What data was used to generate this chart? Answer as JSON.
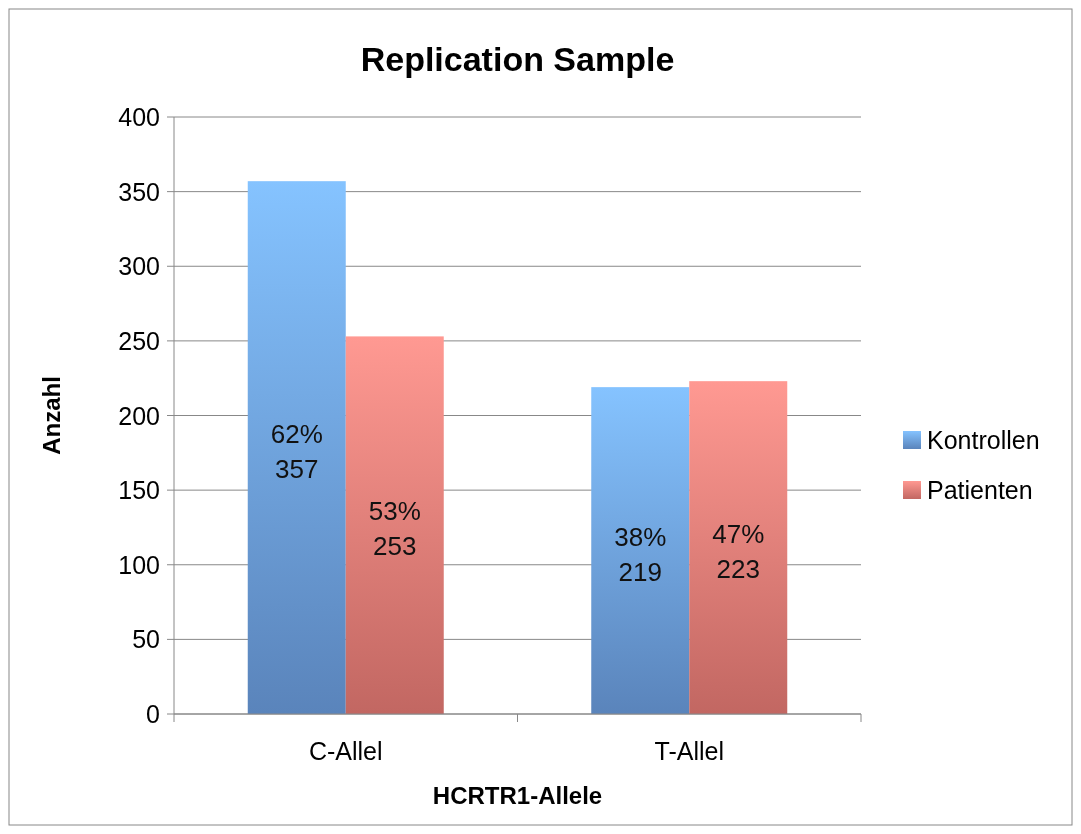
{
  "chart_data": {
    "type": "bar",
    "title": "Replication Sample",
    "xlabel": "HCRTR1-Allele",
    "ylabel": "Anzahl",
    "categories": [
      "C-Allel",
      "T-Allel"
    ],
    "series": [
      {
        "name": "Kontrollen",
        "color": "#6fa3e8",
        "values": [
          357,
          219
        ],
        "value_labels": [
          "62%\n357",
          "38%\n219"
        ]
      },
      {
        "name": "Patienten",
        "color": "#f0807a",
        "values": [
          253,
          223
        ],
        "value_labels": [
          "53%\n253",
          "47%\n223"
        ]
      }
    ],
    "ylim": [
      0,
      400
    ],
    "yticks": [
      0,
      50,
      100,
      150,
      200,
      250,
      300,
      350,
      400
    ],
    "grid": "y",
    "legend": "right"
  }
}
